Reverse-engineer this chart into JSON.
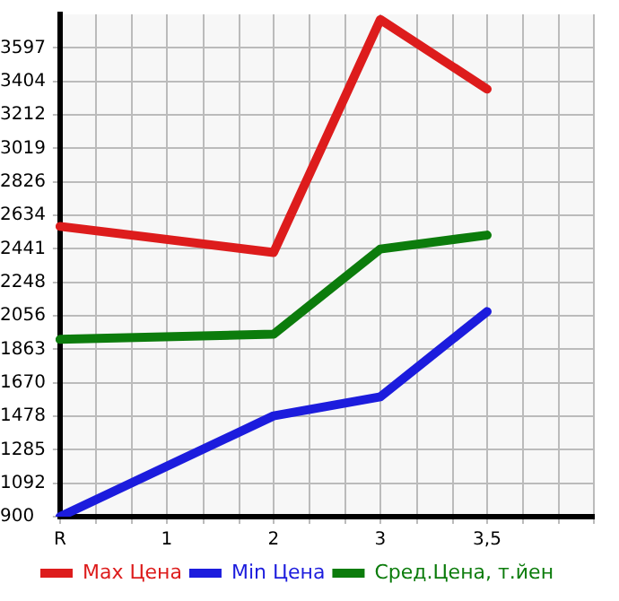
{
  "chart_data": {
    "type": "line",
    "categories": [
      "R",
      "1",
      "2",
      "3",
      "3,5",
      null
    ],
    "ylim": [
      900,
      3790
    ],
    "yticks": [
      900,
      1092,
      1285,
      1478,
      1670,
      1863,
      2056,
      2248,
      2441,
      2634,
      2826,
      3019,
      3212,
      3404,
      3597
    ],
    "grid": true,
    "legend": "bottom",
    "marker": "none",
    "line_style": "solid",
    "series": [
      {
        "name": "Max Цена",
        "color": "#dd1c1c",
        "values": [
          2570,
          null,
          2420,
          3760,
          3360,
          null
        ]
      },
      {
        "name": "Min Цена",
        "color": "#1c1cdd",
        "values": [
          900,
          null,
          1480,
          1590,
          2080,
          null
        ]
      },
      {
        "name": "Сред.Цена, т.йен",
        "color": "#0c7c0c",
        "values": [
          1920,
          null,
          1950,
          2440,
          2520,
          null
        ]
      }
    ]
  }
}
